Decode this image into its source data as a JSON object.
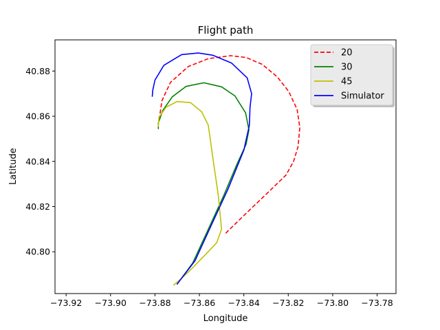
{
  "chart_data": {
    "type": "line",
    "title": "Flight path",
    "xlabel": "Longitude",
    "ylabel": "Latitude",
    "xlim": [
      -73.925,
      -73.7715
    ],
    "ylim": [
      40.7815,
      40.8938
    ],
    "xticks": [
      -73.92,
      -73.9,
      -73.88,
      -73.86,
      -73.84,
      -73.82,
      -73.8,
      -73.78
    ],
    "xtick_labels": [
      "−73.92",
      "−73.90",
      "−73.88",
      "−73.86",
      "−73.84",
      "−73.82",
      "−73.80",
      "−73.78"
    ],
    "yticks": [
      40.8,
      40.82,
      40.84,
      40.86,
      40.88
    ],
    "ytick_labels": [
      "40.80",
      "40.82",
      "40.84",
      "40.86",
      "40.88"
    ],
    "grid": false,
    "legend_position": "upper-right",
    "series": [
      {
        "name": "20",
        "color": "#ff0000",
        "style": "dashed",
        "points": [
          [
            -73.8482,
            40.8082
          ],
          [
            -73.839,
            40.817
          ],
          [
            -73.8296,
            40.8258
          ],
          [
            -73.821,
            40.834
          ],
          [
            -73.8176,
            40.84
          ],
          [
            -73.8156,
            40.8465
          ],
          [
            -73.8148,
            40.855
          ],
          [
            -73.816,
            40.863
          ],
          [
            -73.8198,
            40.871
          ],
          [
            -73.825,
            40.8775
          ],
          [
            -73.8318,
            40.883
          ],
          [
            -73.839,
            40.886
          ],
          [
            -73.846,
            40.8868
          ],
          [
            -73.856,
            40.8855
          ],
          [
            -73.865,
            40.882
          ],
          [
            -73.873,
            40.875
          ],
          [
            -73.8768,
            40.867
          ],
          [
            -73.8782,
            40.858
          ]
        ]
      },
      {
        "name": "30",
        "color": "#008000",
        "style": "solid",
        "points": [
          [
            -73.87,
            40.7857
          ],
          [
            -73.863,
            40.795
          ],
          [
            -73.856,
            40.81
          ],
          [
            -73.849,
            40.825
          ],
          [
            -73.843,
            40.839
          ],
          [
            -73.839,
            40.8475
          ],
          [
            -73.8377,
            40.854
          ],
          [
            -73.8392,
            40.8615
          ],
          [
            -73.844,
            40.869
          ],
          [
            -73.85,
            40.873
          ],
          [
            -73.858,
            40.8748
          ],
          [
            -73.866,
            40.8732
          ],
          [
            -73.8722,
            40.8686
          ],
          [
            -73.8765,
            40.8625
          ],
          [
            -73.8785,
            40.857
          ],
          [
            -73.8785,
            40.8545
          ]
        ]
      },
      {
        "name": "45",
        "color": "#bfbf00",
        "style": "solid",
        "points": [
          [
            -73.8715,
            40.7853
          ],
          [
            -73.865,
            40.791
          ],
          [
            -73.8575,
            40.7985
          ],
          [
            -73.8522,
            40.804
          ],
          [
            -73.85,
            40.81
          ],
          [
            -73.8515,
            40.825
          ],
          [
            -73.854,
            40.842
          ],
          [
            -73.856,
            40.856
          ],
          [
            -73.859,
            40.862
          ],
          [
            -73.864,
            40.866
          ],
          [
            -73.87,
            40.8665
          ],
          [
            -73.875,
            40.864
          ],
          [
            -73.8782,
            40.8595
          ],
          [
            -73.8785,
            40.8555
          ]
        ]
      },
      {
        "name": "Simulator",
        "color": "#0000ff",
        "style": "solid",
        "points": [
          [
            -73.87,
            40.7857
          ],
          [
            -73.862,
            40.796
          ],
          [
            -73.855,
            40.811
          ],
          [
            -73.847,
            40.828
          ],
          [
            -73.84,
            40.845
          ],
          [
            -73.8375,
            40.856
          ],
          [
            -73.8372,
            40.864
          ],
          [
            -73.8365,
            40.87
          ],
          [
            -73.8385,
            40.877
          ],
          [
            -73.8455,
            40.8835
          ],
          [
            -73.854,
            40.887
          ],
          [
            -73.8605,
            40.888
          ],
          [
            -73.868,
            40.8873
          ],
          [
            -73.876,
            40.8825
          ],
          [
            -73.88,
            40.876
          ],
          [
            -73.881,
            40.8715
          ],
          [
            -73.8812,
            40.8688
          ]
        ]
      }
    ]
  }
}
